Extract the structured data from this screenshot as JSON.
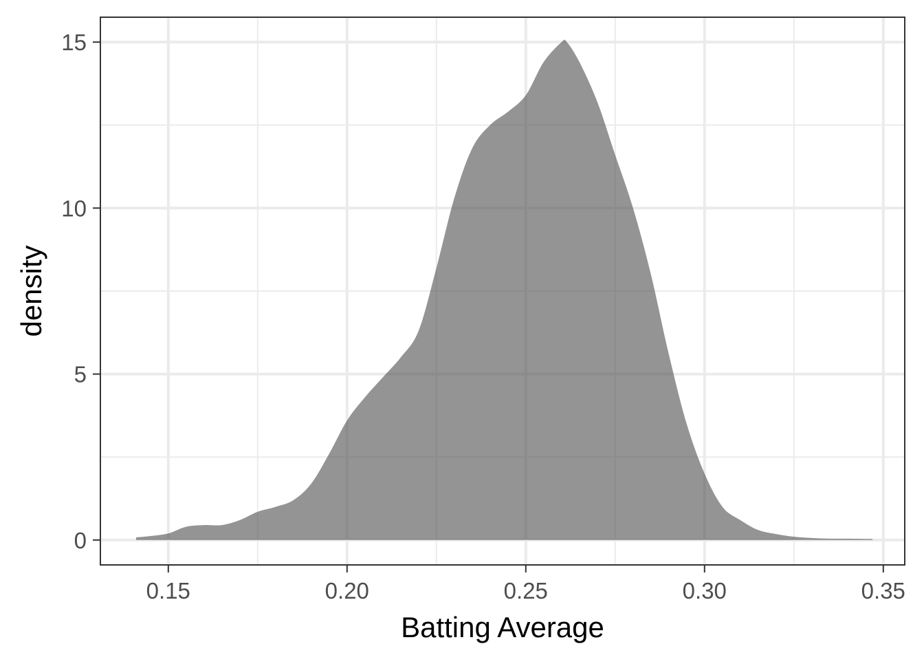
{
  "chart_data": {
    "type": "area",
    "title": "",
    "xlabel": "Batting Average",
    "ylabel": "density",
    "xlim": [
      0.131,
      0.356
    ],
    "ylim": [
      -0.75,
      15.75
    ],
    "x_ticks": [
      0.15,
      0.2,
      0.25,
      0.3,
      0.35
    ],
    "x_tick_labels": [
      "0.15",
      "0.20",
      "0.25",
      "0.30",
      "0.35"
    ],
    "x_minor_ticks": [
      0.175,
      0.225,
      0.275,
      0.325
    ],
    "y_ticks": [
      0,
      5,
      10,
      15
    ],
    "y_tick_labels": [
      "0",
      "5",
      "10",
      "15"
    ],
    "y_minor_ticks": [
      2.5,
      7.5,
      12.5
    ],
    "grid": true,
    "legend": "none",
    "fill_color": "#4d4d4d",
    "fill_opacity": 0.6,
    "series": [
      {
        "x": [
          0.141,
          0.145,
          0.15,
          0.155,
          0.16,
          0.165,
          0.17,
          0.175,
          0.18,
          0.185,
          0.19,
          0.195,
          0.2,
          0.205,
          0.21,
          0.215,
          0.22,
          0.225,
          0.23,
          0.235,
          0.24,
          0.245,
          0.25,
          0.255,
          0.26,
          0.2615,
          0.265,
          0.27,
          0.275,
          0.28,
          0.285,
          0.29,
          0.295,
          0.3,
          0.305,
          0.31,
          0.315,
          0.32,
          0.325,
          0.33,
          0.335,
          0.34,
          0.347
        ],
        "y": [
          0.08,
          0.12,
          0.2,
          0.4,
          0.45,
          0.45,
          0.6,
          0.85,
          1.0,
          1.2,
          1.7,
          2.6,
          3.6,
          4.3,
          4.9,
          5.5,
          6.3,
          8.2,
          10.3,
          11.8,
          12.5,
          12.9,
          13.4,
          14.4,
          15.0,
          15.0,
          14.4,
          13.2,
          11.6,
          10.0,
          8.0,
          5.6,
          3.5,
          2.0,
          1.0,
          0.6,
          0.3,
          0.18,
          0.1,
          0.06,
          0.04,
          0.04,
          0.03
        ]
      }
    ]
  }
}
